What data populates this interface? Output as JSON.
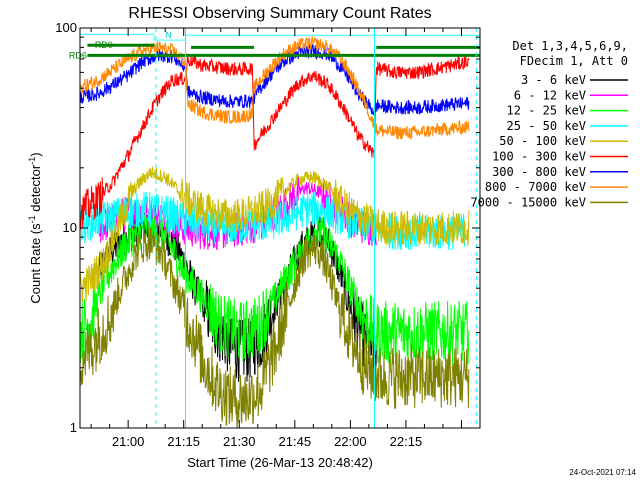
{
  "chart_data": {
    "type": "line",
    "title": "RHESSI Observing Summary Count Rates",
    "xlabel": "Start Time (26-Mar-13 20:48:42)",
    "ylabel_main": "Count Rate (s",
    "ylabel_sup": "-1",
    "ylabel_tail": " detector",
    "ylabel_end": ")",
    "y_scale": "log",
    "ylim": [
      1,
      100
    ],
    "y_ticks": [
      {
        "value": 1,
        "label": "1"
      },
      {
        "value": 10,
        "label": "10"
      },
      {
        "value": 100,
        "label": "100"
      }
    ],
    "xlim_minutes": [
      -13,
      95
    ],
    "x_ticks": [
      {
        "minute": 0,
        "label": "21:00"
      },
      {
        "minute": 15,
        "label": "21:15"
      },
      {
        "minute": 30,
        "label": "21:30"
      },
      {
        "minute": 45,
        "label": "21:45"
      },
      {
        "minute": 60,
        "label": "22:00"
      },
      {
        "minute": 75,
        "label": "22:15"
      }
    ],
    "legend_header": [
      "Det 1,3,4,5,6,9,",
      "FDecim 1, Att 0"
    ],
    "legend_position": "top-right",
    "series": [
      {
        "name": "3 - 6 keV",
        "color": "#000000",
        "x": [
          -8,
          -5,
          -2,
          3,
          8,
          13,
          18,
          23,
          28,
          32,
          36,
          42,
          47,
          52,
          56,
          59,
          62,
          66,
          67
        ],
        "y": [
          6,
          7.5,
          8.5,
          10,
          10,
          8,
          5,
          3.3,
          2.5,
          2.4,
          2.8,
          5,
          8,
          10,
          7,
          4.5,
          3.2,
          2.4,
          2.3
        ]
      },
      {
        "name": "6 - 12 keV",
        "color": "#ff00ff",
        "x": [
          -8,
          -4,
          0,
          5,
          10,
          15,
          20,
          25,
          30,
          36,
          42,
          48,
          52,
          56,
          60,
          64,
          67
        ],
        "y": [
          10,
          11,
          12,
          12,
          11,
          10,
          9.5,
          9.5,
          9.8,
          10.5,
          13,
          16,
          15,
          13,
          11,
          10,
          10
        ]
      },
      {
        "name": "12 - 25 keV",
        "color": "#00ff00",
        "x": [
          -13,
          -10,
          -5,
          0,
          5,
          10,
          15,
          20,
          25,
          30,
          35,
          40,
          46,
          51,
          56,
          60,
          64,
          67,
          72,
          76,
          80,
          84,
          88,
          92
        ],
        "y": [
          3,
          3.5,
          6,
          8.5,
          10,
          9,
          6,
          4.5,
          3.3,
          3,
          3.2,
          4.5,
          7,
          10,
          7.5,
          5,
          3.5,
          3,
          3,
          3,
          3,
          3,
          3,
          3
        ]
      },
      {
        "name": "25 - 50 keV",
        "color": "#00ffff",
        "x": [
          -13,
          -8,
          -4,
          0,
          5,
          10,
          15,
          20,
          26,
          32,
          38,
          44,
          48,
          52,
          56,
          60,
          64,
          67,
          72,
          78,
          84,
          88,
          92
        ],
        "y": [
          10,
          11,
          11.5,
          12,
          12.5,
          12,
          11,
          10.5,
          10,
          10.2,
          10.5,
          11.5,
          12.5,
          12.5,
          11.5,
          10.8,
          10.2,
          10,
          9.5,
          9.5,
          9.5,
          9.5,
          10
        ]
      },
      {
        "name": "50 - 100 keV",
        "color": "#ccbb00",
        "x": [
          -13,
          -10,
          -6,
          -2,
          2,
          6,
          10,
          14,
          18,
          22,
          26,
          30,
          34,
          38,
          42,
          46,
          50,
          54,
          58,
          62,
          66,
          70,
          76,
          82,
          88,
          92
        ],
        "y": [
          5,
          5.5,
          7,
          11,
          16,
          19,
          18,
          15,
          13,
          12,
          11.5,
          11.5,
          12,
          13,
          15,
          17.5,
          18,
          16,
          13,
          11.5,
          10.5,
          10,
          10,
          10,
          10,
          10
        ]
      },
      {
        "name": "100 - 300 keV",
        "color": "#ff0000",
        "x": [
          -13,
          -8,
          -4,
          0,
          4,
          8,
          12,
          15.5,
          16,
          20,
          26,
          30,
          33.5,
          34,
          38,
          42,
          46,
          50,
          54,
          58,
          62,
          66.5,
          67,
          72,
          78,
          84,
          92
        ],
        "y": [
          12,
          14,
          17,
          23,
          32,
          44,
          55,
          56,
          70,
          65,
          63,
          62,
          63,
          26,
          33,
          42,
          53,
          58,
          52,
          40,
          29,
          23,
          63,
          60,
          60,
          63,
          68
        ]
      },
      {
        "name": "300 - 800 keV",
        "color": "#0000ff",
        "x": [
          -13,
          -8,
          -4,
          0,
          4,
          8,
          12,
          15.5,
          16,
          20,
          26,
          30,
          33.5,
          34,
          38,
          42,
          46,
          50,
          54,
          58,
          62,
          66.5,
          67,
          72,
          78,
          84,
          92
        ],
        "y": [
          45,
          47,
          52,
          58,
          68,
          73,
          72,
          63,
          48,
          45,
          43,
          43,
          43,
          45,
          57,
          68,
          75,
          77,
          74,
          62,
          47,
          38,
          41,
          40,
          40,
          41,
          42
        ]
      },
      {
        "name": "800 - 7000 keV",
        "color": "#ff8800",
        "x": [
          -13,
          -8,
          -4,
          0,
          4,
          8,
          12,
          15.5,
          16,
          20,
          26,
          30,
          33.5,
          34,
          38,
          42,
          46,
          50,
          54,
          58,
          62,
          66.5,
          67,
          72,
          78,
          84,
          92
        ],
        "y": [
          50,
          55,
          62,
          70,
          77,
          80,
          77,
          67,
          42,
          38,
          36,
          36,
          37,
          50,
          62,
          74,
          82,
          84,
          80,
          68,
          50,
          32,
          31,
          30,
          30,
          31,
          32
        ]
      },
      {
        "name": "7000 - 15000 keV",
        "color": "#808000",
        "x": [
          -13,
          -10,
          -5,
          0,
          3,
          6,
          9,
          12,
          16,
          20,
          24,
          28,
          32,
          36,
          40,
          44,
          48,
          50,
          52,
          56,
          60,
          64,
          68,
          72,
          76,
          80,
          84,
          88,
          92
        ],
        "y": [
          2.2,
          2.5,
          3.5,
          6,
          8,
          8.5,
          7.5,
          5.5,
          3.5,
          2.2,
          1.6,
          1.4,
          1.4,
          1.6,
          2.5,
          4.5,
          7.5,
          8,
          7.5,
          4.5,
          2.8,
          2,
          1.8,
          1.8,
          1.8,
          1.8,
          1.8,
          1.8,
          1.8
        ]
      },
      {
        "name": "",
        "color": "#33ffff",
        "x": [
          -13,
          7,
          7,
          15.5,
          15.5,
          66.5,
          66.5,
          95
        ],
        "y": [
          93,
          93,
          87,
          87,
          92,
          92,
          92,
          92
        ]
      }
    ],
    "segments": [
      {
        "name": "RD0",
        "color": "#008000",
        "x1": -11,
        "x2": 7,
        "y": 82
      },
      {
        "name": "RD6",
        "color": "#008000",
        "x1": -11,
        "x2": 95,
        "y": 73
      },
      {
        "name": "",
        "color": "#008000",
        "x1": 17,
        "x2": 34,
        "y": 80
      },
      {
        "name": "",
        "color": "#008000",
        "x1": 67,
        "x2": 95,
        "y": 80
      }
    ],
    "annotations": [
      {
        "text": "RD0",
        "color": "#008000",
        "minute": -9,
        "value": 82
      },
      {
        "text": "RD6",
        "color": "#008000",
        "minute": -16,
        "value": 73
      },
      {
        "text": "N",
        "color": "#00cccc",
        "minute": 10,
        "value": 92
      }
    ],
    "vertical_markers": [
      {
        "minute": -13,
        "color": "#00ffff",
        "style": "solid"
      },
      {
        "minute": 7.5,
        "color": "#00ffff",
        "style": "dashed"
      },
      {
        "minute": 15.5,
        "color": "#00ffff",
        "style": "solid"
      },
      {
        "minute": 66.5,
        "color": "#00ffff",
        "style": "solid"
      },
      {
        "minute": 94,
        "color": "#00ffff",
        "style": "dashed"
      }
    ],
    "grid": false
  },
  "footer": {
    "timestamp": "24-Oct-2021 07:14"
  }
}
